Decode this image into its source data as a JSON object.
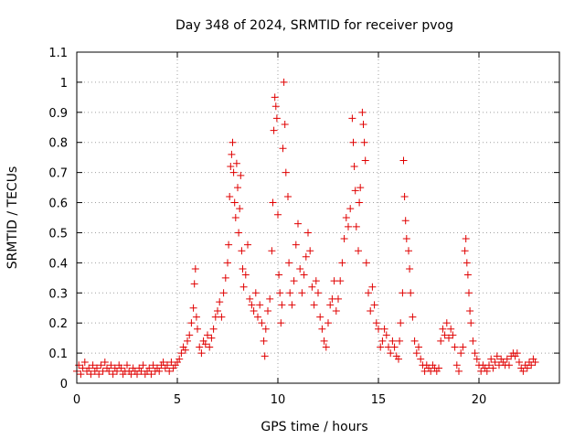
{
  "chart_data": {
    "type": "scatter",
    "title": "Day 348 of 2024, SRMTID for receiver pvog",
    "xlabel": "GPS time / hours",
    "ylabel": "SRMTID / TECUs",
    "xlim": [
      0,
      24
    ],
    "ylim": [
      0,
      1.1
    ],
    "xticks": [
      0,
      5,
      10,
      15,
      20
    ],
    "xtick_labels": [
      "0",
      "5",
      "10",
      "15",
      "20"
    ],
    "yticks": [
      0,
      0.1,
      0.2,
      0.3,
      0.4,
      0.5,
      0.6,
      0.7,
      0.8,
      0.9,
      1,
      1.1
    ],
    "ytick_labels": [
      "0",
      "0.1",
      "0.2",
      "0.3",
      "0.4",
      "0.5",
      "0.6",
      "0.7",
      "0.8",
      "0.9",
      "1",
      "1.1"
    ],
    "grid": true,
    "marker": "+",
    "color": "#e00000",
    "series": [
      {
        "name": "SRMTID",
        "points": [
          [
            0.0,
            0.04
          ],
          [
            0.1,
            0.06
          ],
          [
            0.2,
            0.03
          ],
          [
            0.3,
            0.05
          ],
          [
            0.4,
            0.07
          ],
          [
            0.5,
            0.04
          ],
          [
            0.6,
            0.05
          ],
          [
            0.7,
            0.03
          ],
          [
            0.8,
            0.06
          ],
          [
            0.9,
            0.04
          ],
          [
            1.0,
            0.05
          ],
          [
            1.1,
            0.03
          ],
          [
            1.2,
            0.06
          ],
          [
            1.3,
            0.04
          ],
          [
            1.4,
            0.07
          ],
          [
            1.5,
            0.05
          ],
          [
            1.6,
            0.04
          ],
          [
            1.7,
            0.06
          ],
          [
            1.8,
            0.03
          ],
          [
            1.9,
            0.05
          ],
          [
            2.0,
            0.04
          ],
          [
            2.1,
            0.06
          ],
          [
            2.2,
            0.05
          ],
          [
            2.3,
            0.03
          ],
          [
            2.4,
            0.04
          ],
          [
            2.5,
            0.06
          ],
          [
            2.6,
            0.04
          ],
          [
            2.7,
            0.03
          ],
          [
            2.8,
            0.05
          ],
          [
            2.9,
            0.04
          ],
          [
            3.0,
            0.03
          ],
          [
            3.1,
            0.05
          ],
          [
            3.2,
            0.04
          ],
          [
            3.3,
            0.06
          ],
          [
            3.4,
            0.03
          ],
          [
            3.5,
            0.04
          ],
          [
            3.6,
            0.05
          ],
          [
            3.7,
            0.03
          ],
          [
            3.8,
            0.06
          ],
          [
            3.9,
            0.04
          ],
          [
            4.0,
            0.05
          ],
          [
            4.1,
            0.04
          ],
          [
            4.2,
            0.06
          ],
          [
            4.3,
            0.07
          ],
          [
            4.4,
            0.05
          ],
          [
            4.5,
            0.06
          ],
          [
            4.6,
            0.04
          ],
          [
            4.7,
            0.07
          ],
          [
            4.8,
            0.05
          ],
          [
            4.9,
            0.06
          ],
          [
            5.0,
            0.07
          ],
          [
            5.1,
            0.08
          ],
          [
            5.2,
            0.1
          ],
          [
            5.3,
            0.12
          ],
          [
            5.4,
            0.11
          ],
          [
            5.5,
            0.14
          ],
          [
            5.6,
            0.16
          ],
          [
            5.7,
            0.2
          ],
          [
            5.8,
            0.25
          ],
          [
            5.85,
            0.33
          ],
          [
            5.9,
            0.38
          ],
          [
            5.95,
            0.22
          ],
          [
            6.0,
            0.18
          ],
          [
            6.1,
            0.12
          ],
          [
            6.2,
            0.1
          ],
          [
            6.3,
            0.14
          ],
          [
            6.4,
            0.13
          ],
          [
            6.5,
            0.16
          ],
          [
            6.6,
            0.12
          ],
          [
            6.7,
            0.15
          ],
          [
            6.8,
            0.18
          ],
          [
            6.9,
            0.22
          ],
          [
            7.0,
            0.24
          ],
          [
            7.1,
            0.27
          ],
          [
            7.2,
            0.22
          ],
          [
            7.3,
            0.3
          ],
          [
            7.4,
            0.35
          ],
          [
            7.5,
            0.4
          ],
          [
            7.55,
            0.46
          ],
          [
            7.6,
            0.62
          ],
          [
            7.65,
            0.72
          ],
          [
            7.7,
            0.76
          ],
          [
            7.75,
            0.8
          ],
          [
            7.8,
            0.7
          ],
          [
            7.85,
            0.6
          ],
          [
            7.9,
            0.55
          ],
          [
            7.95,
            0.73
          ],
          [
            8.0,
            0.65
          ],
          [
            8.05,
            0.5
          ],
          [
            8.1,
            0.58
          ],
          [
            8.15,
            0.69
          ],
          [
            8.2,
            0.44
          ],
          [
            8.25,
            0.38
          ],
          [
            8.3,
            0.32
          ],
          [
            8.4,
            0.36
          ],
          [
            8.5,
            0.46
          ],
          [
            8.6,
            0.28
          ],
          [
            8.7,
            0.26
          ],
          [
            8.8,
            0.24
          ],
          [
            8.9,
            0.3
          ],
          [
            9.0,
            0.22
          ],
          [
            9.1,
            0.26
          ],
          [
            9.2,
            0.2
          ],
          [
            9.3,
            0.14
          ],
          [
            9.35,
            0.09
          ],
          [
            9.4,
            0.18
          ],
          [
            9.5,
            0.24
          ],
          [
            9.6,
            0.28
          ],
          [
            9.7,
            0.44
          ],
          [
            9.75,
            0.6
          ],
          [
            9.8,
            0.84
          ],
          [
            9.85,
            0.95
          ],
          [
            9.9,
            0.92
          ],
          [
            9.95,
            0.88
          ],
          [
            10.0,
            0.56
          ],
          [
            10.05,
            0.36
          ],
          [
            10.1,
            0.3
          ],
          [
            10.15,
            0.2
          ],
          [
            10.2,
            0.26
          ],
          [
            10.25,
            0.78
          ],
          [
            10.3,
            1.0
          ],
          [
            10.35,
            0.86
          ],
          [
            10.4,
            0.7
          ],
          [
            10.5,
            0.62
          ],
          [
            10.55,
            0.4
          ],
          [
            10.6,
            0.3
          ],
          [
            10.7,
            0.26
          ],
          [
            10.8,
            0.34
          ],
          [
            10.9,
            0.46
          ],
          [
            11.0,
            0.53
          ],
          [
            11.1,
            0.38
          ],
          [
            11.2,
            0.3
          ],
          [
            11.3,
            0.36
          ],
          [
            11.4,
            0.42
          ],
          [
            11.5,
            0.5
          ],
          [
            11.6,
            0.44
          ],
          [
            11.7,
            0.32
          ],
          [
            11.8,
            0.26
          ],
          [
            11.9,
            0.34
          ],
          [
            12.0,
            0.3
          ],
          [
            12.1,
            0.22
          ],
          [
            12.2,
            0.18
          ],
          [
            12.3,
            0.14
          ],
          [
            12.4,
            0.12
          ],
          [
            12.5,
            0.2
          ],
          [
            12.6,
            0.26
          ],
          [
            12.7,
            0.28
          ],
          [
            12.8,
            0.34
          ],
          [
            12.9,
            0.24
          ],
          [
            13.0,
            0.28
          ],
          [
            13.1,
            0.34
          ],
          [
            13.2,
            0.4
          ],
          [
            13.3,
            0.48
          ],
          [
            13.4,
            0.55
          ],
          [
            13.5,
            0.52
          ],
          [
            13.6,
            0.58
          ],
          [
            13.7,
            0.88
          ],
          [
            13.75,
            0.8
          ],
          [
            13.8,
            0.72
          ],
          [
            13.85,
            0.64
          ],
          [
            13.9,
            0.52
          ],
          [
            14.0,
            0.44
          ],
          [
            14.05,
            0.6
          ],
          [
            14.1,
            0.65
          ],
          [
            14.2,
            0.9
          ],
          [
            14.25,
            0.86
          ],
          [
            14.3,
            0.8
          ],
          [
            14.35,
            0.74
          ],
          [
            14.4,
            0.4
          ],
          [
            14.5,
            0.3
          ],
          [
            14.6,
            0.24
          ],
          [
            14.7,
            0.32
          ],
          [
            14.8,
            0.26
          ],
          [
            14.9,
            0.2
          ],
          [
            15.0,
            0.18
          ],
          [
            15.1,
            0.12
          ],
          [
            15.2,
            0.14
          ],
          [
            15.3,
            0.18
          ],
          [
            15.4,
            0.16
          ],
          [
            15.5,
            0.12
          ],
          [
            15.6,
            0.1
          ],
          [
            15.7,
            0.14
          ],
          [
            15.8,
            0.12
          ],
          [
            15.9,
            0.09
          ],
          [
            16.0,
            0.08
          ],
          [
            16.05,
            0.14
          ],
          [
            16.1,
            0.2
          ],
          [
            16.2,
            0.3
          ],
          [
            16.25,
            0.74
          ],
          [
            16.3,
            0.62
          ],
          [
            16.35,
            0.54
          ],
          [
            16.4,
            0.48
          ],
          [
            16.5,
            0.44
          ],
          [
            16.55,
            0.38
          ],
          [
            16.6,
            0.3
          ],
          [
            16.7,
            0.22
          ],
          [
            16.8,
            0.14
          ],
          [
            16.9,
            0.1
          ],
          [
            17.0,
            0.12
          ],
          [
            17.1,
            0.08
          ],
          [
            17.2,
            0.06
          ],
          [
            17.3,
            0.04
          ],
          [
            17.4,
            0.06
          ],
          [
            17.5,
            0.05
          ],
          [
            17.6,
            0.04
          ],
          [
            17.7,
            0.06
          ],
          [
            17.8,
            0.05
          ],
          [
            17.9,
            0.04
          ],
          [
            18.0,
            0.05
          ],
          [
            18.1,
            0.14
          ],
          [
            18.2,
            0.18
          ],
          [
            18.3,
            0.16
          ],
          [
            18.4,
            0.2
          ],
          [
            18.5,
            0.15
          ],
          [
            18.6,
            0.18
          ],
          [
            18.7,
            0.16
          ],
          [
            18.8,
            0.12
          ],
          [
            18.9,
            0.06
          ],
          [
            19.0,
            0.04
          ],
          [
            19.1,
            0.1
          ],
          [
            19.2,
            0.12
          ],
          [
            19.3,
            0.44
          ],
          [
            19.35,
            0.48
          ],
          [
            19.4,
            0.4
          ],
          [
            19.45,
            0.36
          ],
          [
            19.5,
            0.3
          ],
          [
            19.55,
            0.24
          ],
          [
            19.6,
            0.2
          ],
          [
            19.7,
            0.14
          ],
          [
            19.8,
            0.1
          ],
          [
            19.9,
            0.08
          ],
          [
            20.0,
            0.06
          ],
          [
            20.1,
            0.04
          ],
          [
            20.2,
            0.06
          ],
          [
            20.3,
            0.05
          ],
          [
            20.4,
            0.04
          ],
          [
            20.5,
            0.06
          ],
          [
            20.6,
            0.08
          ],
          [
            20.7,
            0.05
          ],
          [
            20.8,
            0.07
          ],
          [
            20.9,
            0.09
          ],
          [
            21.0,
            0.06
          ],
          [
            21.1,
            0.08
          ],
          [
            21.2,
            0.07
          ],
          [
            21.3,
            0.06
          ],
          [
            21.4,
            0.08
          ],
          [
            21.5,
            0.06
          ],
          [
            21.6,
            0.09
          ],
          [
            21.7,
            0.1
          ],
          [
            21.8,
            0.09
          ],
          [
            21.9,
            0.1
          ],
          [
            22.0,
            0.07
          ],
          [
            22.1,
            0.05
          ],
          [
            22.2,
            0.04
          ],
          [
            22.3,
            0.06
          ],
          [
            22.4,
            0.05
          ],
          [
            22.5,
            0.07
          ],
          [
            22.6,
            0.06
          ],
          [
            22.7,
            0.08
          ],
          [
            22.8,
            0.07
          ]
        ]
      }
    ]
  }
}
